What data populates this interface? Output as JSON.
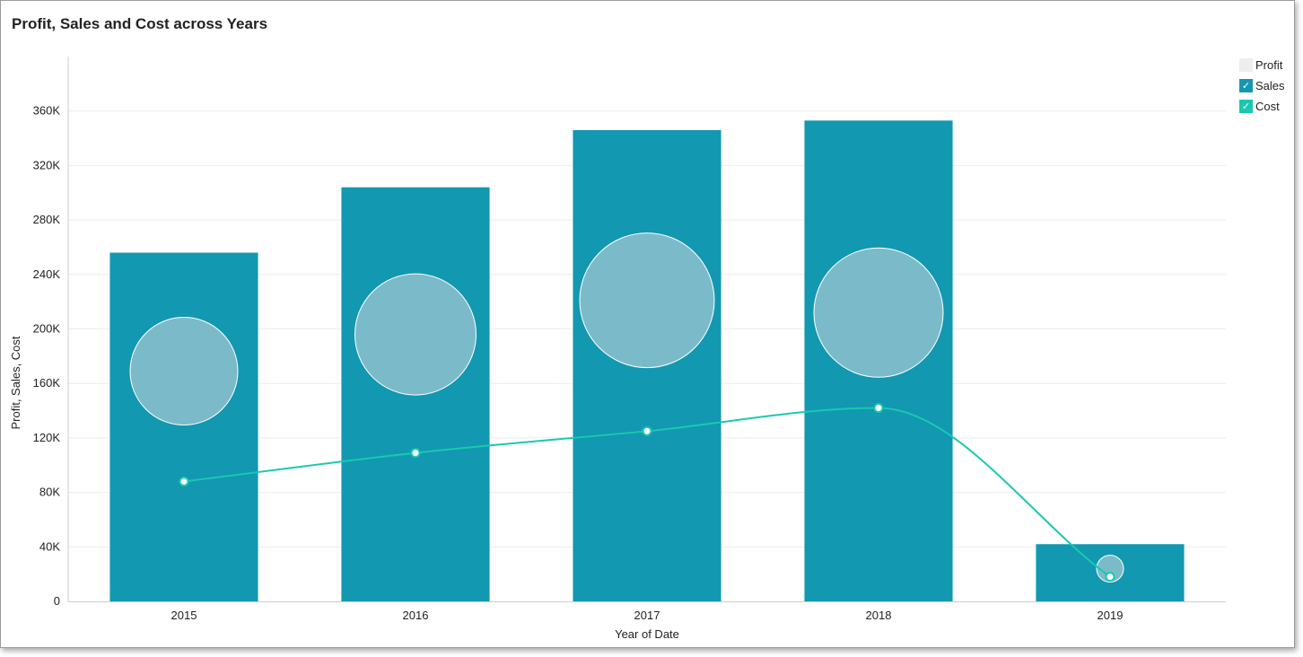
{
  "chart_data": {
    "type": "bar",
    "title": "Profit, Sales and Cost across Years",
    "xlabel": "Year of Date",
    "ylabel": "Profit, Sales, Cost",
    "categories": [
      "2015",
      "2016",
      "2017",
      "2018",
      "2019"
    ],
    "ylim": [
      0,
      400000
    ],
    "yticks": [
      0,
      40000,
      80000,
      120000,
      160000,
      200000,
      240000,
      280000,
      320000,
      360000
    ],
    "ytick_labels": [
      "0",
      "40K",
      "80K",
      "120K",
      "160K",
      "200K",
      "240K",
      "280K",
      "320K",
      "360K"
    ],
    "grid": true,
    "legend_position": "top-right",
    "series": [
      {
        "name": "Sales",
        "type": "bar",
        "color": "#1298b0",
        "checked": true,
        "values": [
          256000,
          304000,
          346000,
          353000,
          42000
        ]
      },
      {
        "name": "Cost",
        "type": "line",
        "color": "#1ac8b0",
        "checked": true,
        "values": [
          88000,
          109000,
          125000,
          142000,
          18000
        ]
      },
      {
        "name": "Profit",
        "type": "bubble",
        "color": "#7bbbc9",
        "checked": false,
        "values": [
          169000,
          196000,
          221000,
          212000,
          24000
        ],
        "bubble_size": [
          40,
          45,
          50,
          48,
          10
        ]
      }
    ]
  }
}
